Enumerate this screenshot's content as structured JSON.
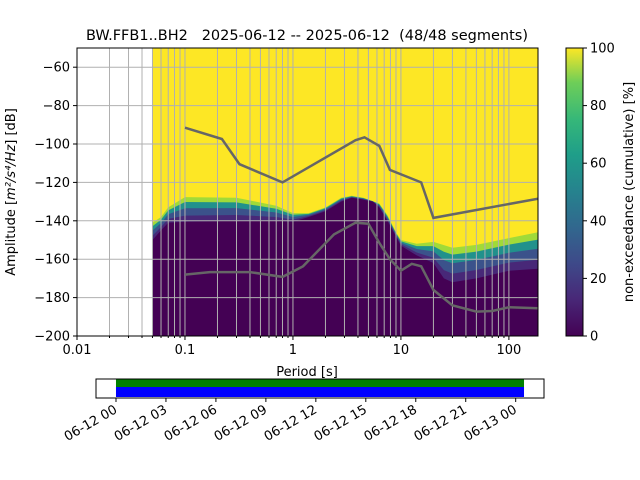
{
  "chart_data": {
    "type": "heatmap",
    "title": "BW.FFB1..BH2   2025-06-12 -- 2025-06-12  (48/48 segments)",
    "xlabel": "Period [s]",
    "ylabel": "Amplitude [m²/s⁴/Hz] [dB]",
    "ylabel_parts": {
      "pre": "Amplitude [",
      "unit": "m²/s⁴/Hz",
      "post": "] [dB]"
    },
    "xscale": "log",
    "xlim": [
      0.01,
      186
    ],
    "ylim": [
      -200,
      -50
    ],
    "xticks": [
      {
        "v": 0.01,
        "label": "0.01"
      },
      {
        "v": 0.1,
        "label": "0.1"
      },
      {
        "v": 1,
        "label": "1"
      },
      {
        "v": 10,
        "label": "10"
      },
      {
        "v": 100,
        "label": "100"
      }
    ],
    "yticks": [
      -60,
      -80,
      -100,
      -120,
      -140,
      -160,
      -180,
      -200
    ],
    "grid": true,
    "data_start_period": 0.05,
    "colorbar": {
      "label": "non-exceedance (cumulative) [%]",
      "ticks": [
        0,
        20,
        40,
        60,
        80,
        100
      ],
      "range": [
        0,
        100
      ],
      "colormap": "viridis"
    },
    "colors": {
      "low": "#440154",
      "mid_low": "#3b528b",
      "mid": "#21918c",
      "mid_high": "#5ec962",
      "high": "#fde725",
      "model_line": "#666666",
      "grid": "#b0b0b0"
    },
    "ppsd_boundaries": {
      "low_top": [
        [
          0.05,
          -150
        ],
        [
          0.06,
          -145
        ],
        [
          0.07,
          -141
        ],
        [
          0.1,
          -140.5
        ],
        [
          0.3,
          -140
        ],
        [
          0.7,
          -140
        ],
        [
          1.0,
          -140.5
        ],
        [
          1.4,
          -138
        ],
        [
          2.0,
          -135
        ],
        [
          2.8,
          -130
        ],
        [
          3.5,
          -128
        ],
        [
          4.5,
          -129
        ],
        [
          5.5,
          -130
        ],
        [
          6.3,
          -133
        ],
        [
          7.5,
          -140
        ],
        [
          9,
          -148
        ],
        [
          10,
          -153
        ],
        [
          14,
          -158
        ],
        [
          20,
          -162
        ],
        [
          25,
          -170
        ],
        [
          30,
          -172
        ],
        [
          50,
          -170
        ],
        [
          100,
          -166
        ],
        [
          186,
          -165
        ]
      ],
      "high_bottom": [
        [
          0.05,
          -141
        ],
        [
          0.06,
          -138
        ],
        [
          0.07,
          -133
        ],
        [
          0.08,
          -128
        ],
        [
          0.15,
          -127
        ],
        [
          0.25,
          -126
        ],
        [
          0.3,
          -128
        ],
        [
          0.6,
          -130
        ],
        [
          0.8,
          -134
        ],
        [
          1.0,
          -136
        ],
        [
          1.4,
          -136
        ],
        [
          2.0,
          -133
        ],
        [
          2.8,
          -128
        ],
        [
          3.5,
          -127
        ],
        [
          4.5,
          -128
        ],
        [
          6.3,
          -131
        ],
        [
          7.5,
          -137
        ],
        [
          9,
          -146
        ],
        [
          10,
          -150
        ],
        [
          14,
          -152
        ],
        [
          20,
          -151
        ],
        [
          30,
          -154
        ],
        [
          60,
          -152
        ],
        [
          100,
          -149
        ],
        [
          186,
          -146
        ]
      ]
    },
    "series": [
      {
        "name": "NHNM",
        "points": [
          [
            0.1,
            -91.5
          ],
          [
            0.22,
            -97.4
          ],
          [
            0.32,
            -110.5
          ],
          [
            0.8,
            -120
          ],
          [
            3.8,
            -98
          ],
          [
            4.6,
            -96.5
          ],
          [
            6.3,
            -101
          ],
          [
            7.9,
            -113.5
          ],
          [
            15.4,
            -120
          ],
          [
            20,
            -138.5
          ],
          [
            186,
            -128.5
          ]
        ]
      },
      {
        "name": "NLNM",
        "points": [
          [
            0.1,
            -168
          ],
          [
            0.17,
            -166.7
          ],
          [
            0.4,
            -166.7
          ],
          [
            0.8,
            -169.2
          ],
          [
            1.24,
            -163.7
          ],
          [
            2.4,
            -147.1
          ],
          [
            3.8,
            -141
          ],
          [
            5,
            -141.5
          ],
          [
            6.3,
            -151.5
          ],
          [
            7.9,
            -160
          ],
          [
            10,
            -166
          ],
          [
            12.6,
            -162.4
          ],
          [
            15.4,
            -163.7
          ],
          [
            20,
            -176
          ],
          [
            30,
            -184
          ],
          [
            50,
            -187.3
          ],
          [
            70,
            -187
          ],
          [
            100,
            -185
          ],
          [
            186,
            -185.5
          ]
        ]
      }
    ]
  },
  "timeline": {
    "tick_labels": [
      "06-12 00",
      "06-12 03",
      "06-12 06",
      "06-12 09",
      "06-12 12",
      "06-12 15",
      "06-12 18",
      "06-12 21",
      "06-13 00"
    ],
    "range_hours": [
      -1.2,
      25.7
    ],
    "coverage_hours": [
      0,
      24.5
    ],
    "colors": {
      "data": "#008000",
      "segments": "#0000ff"
    }
  }
}
